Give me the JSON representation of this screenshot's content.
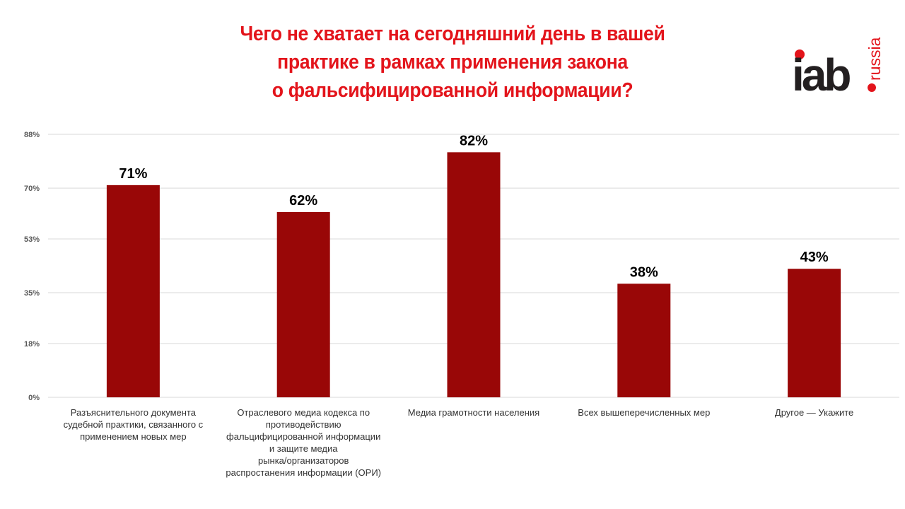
{
  "title": {
    "lines": [
      "Чего не хватает на сегодняшний день в вашей",
      "практике в рамках применения  закона",
      "о фальсифицированной  информации?"
    ]
  },
  "logo": {
    "main": "iab",
    "sub": "russia",
    "text_color": "#231f20",
    "accent_color": "#e3141b"
  },
  "colors": {
    "bar": "#990707",
    "title": "#e3141b",
    "grid": "#d9d9d9",
    "axis_text": "#595959",
    "label_text": "#333333"
  },
  "chart_data": {
    "type": "bar",
    "categories": [
      "Разъяснительного документа судебной практики, связанного с применением новых мер",
      "Отраслевого медиа кодекса по противодействию фальцифицированной информации и защите медиа рынка/организаторов распростанения информации (ОРИ)",
      "Медиа грамотности населения",
      "Всех вышеперечисленных мер",
      "Другое — Укажите"
    ],
    "category_lines": [
      [
        "Разъяснительного документа",
        "судебной практики, связанного с",
        "применением новых мер"
      ],
      [
        "Отраслевого медиа кодекса по",
        "противодействию",
        "фальцифицированной информации",
        "и защите медиа",
        "рынка/организаторов",
        "распростанения информации (ОРИ)"
      ],
      [
        "Медиа грамотности населения"
      ],
      [
        "Всех вышеперечисленных мер"
      ],
      [
        "Другое — Укажите"
      ]
    ],
    "values": [
      71,
      62,
      82,
      38,
      43
    ],
    "data_labels": [
      "71%",
      "62%",
      "82%",
      "38%",
      "43%"
    ],
    "yticks": [
      0,
      18,
      35,
      53,
      70,
      88
    ],
    "ytick_labels": [
      "0%",
      "18%",
      "35%",
      "53%",
      "70%",
      "88%"
    ],
    "ylim": [
      0,
      88
    ],
    "grid": true,
    "legend": "none"
  }
}
